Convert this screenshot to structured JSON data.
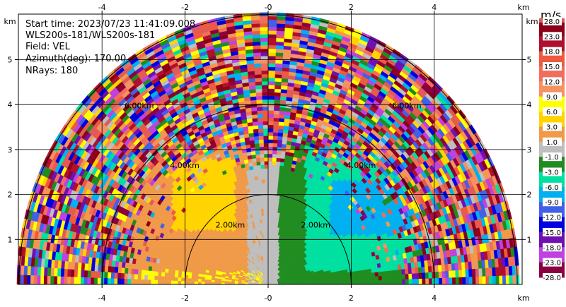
{
  "chart_data": {
    "type": "heatmap",
    "projection": "PPI sector (half-disk), range 0–6 km",
    "info": {
      "start_time": "Start time: 2023/07/23 11:41:09.008",
      "instrument": "WLS200s-181/WLS200s-181",
      "field": "Field: VEL",
      "azimuth": "Azimuth(deg): 170.00",
      "nrays": "NRays: 180"
    },
    "x_axis": {
      "unit": "km",
      "range": [
        -6,
        6
      ],
      "ticks": [
        "-4",
        "-2",
        "-0",
        "2",
        "4"
      ],
      "tick_values": [
        -4,
        -2,
        0,
        2,
        4
      ]
    },
    "y_axis": {
      "unit": "km",
      "range": [
        0,
        6
      ],
      "ticks": [
        "1",
        "2",
        "3",
        "4",
        "5"
      ],
      "tick_values": [
        1,
        2,
        3,
        4,
        5
      ]
    },
    "range_rings": [
      {
        "km": 2,
        "label": "2.00km"
      },
      {
        "km": 4,
        "label": "4.00km"
      },
      {
        "km": 6,
        "label": "6.00km"
      }
    ],
    "colorbar": {
      "unit": "m/s",
      "levels": [
        "28.0",
        "23.0",
        "18.0",
        "15.0",
        "12.0",
        "9.0",
        "6.0",
        "3.0",
        "1.0",
        "-1.0",
        "-3.0",
        "-6.0",
        "-9.0",
        "-12.0",
        "-15.0",
        "-18.0",
        "-23.0",
        "-28.0"
      ],
      "colors": [
        "#e05a58",
        "#8b0018",
        "#b0102c",
        "#ee5a40",
        "#f26e5a",
        "#f49262",
        "#ffff00",
        "#ffd400",
        "#f09a48",
        "#bebebe",
        "#208c20",
        "#00e0a0",
        "#00b0f0",
        "#4060e8",
        "#0000e0",
        "#7010b0",
        "#c040e0",
        "#8b0040"
      ]
    },
    "sectors": {
      "note": "velocity colour by region",
      "near_left": "#f09a48",
      "near_left_mid": "#ffd400",
      "center": "#bebebe",
      "near_right": "#208c20",
      "mid_right": "#00e0a0",
      "far_right": "#00b0f0"
    },
    "grid": true
  }
}
